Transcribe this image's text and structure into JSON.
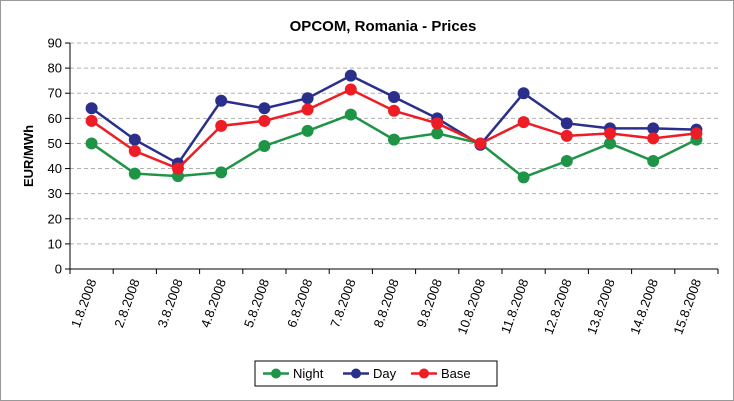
{
  "chart_data": {
    "type": "line",
    "title": "OPCOM, Romania - Prices",
    "ylabel": "EUR/MWh",
    "categories": [
      "1.8.2008",
      "2.8.2008",
      "3.8.2008",
      "4.8.2008",
      "5.8.2008",
      "6.8.2008",
      "7.8.2008",
      "8.8.2008",
      "9.8.2008",
      "10.8.2008",
      "11.8.2008",
      "12.8.2008",
      "13.8.2008",
      "14.8.2008",
      "15.8.2008"
    ],
    "series": [
      {
        "name": "Night",
        "color": "#1e9447",
        "values": [
          50,
          38,
          37,
          38.5,
          49,
          55,
          61.5,
          51.5,
          54,
          50,
          36.5,
          43,
          50,
          43,
          51.5
        ]
      },
      {
        "name": "Day",
        "color": "#2b2f8c",
        "values": [
          64,
          51.5,
          42,
          67,
          64,
          68,
          77,
          68.5,
          60,
          49.5,
          70,
          58,
          56,
          56,
          55.5
        ]
      },
      {
        "name": "Base",
        "color": "#ee1d25",
        "values": [
          59,
          47,
          40,
          57,
          59,
          63.5,
          71.5,
          63,
          58,
          50,
          58.5,
          53,
          54,
          52,
          54
        ]
      }
    ],
    "ylim": [
      0,
      90
    ],
    "yticks": [
      0,
      10,
      20,
      30,
      40,
      50,
      60,
      70,
      80,
      90
    ],
    "grid": true,
    "legend": "bottom"
  }
}
